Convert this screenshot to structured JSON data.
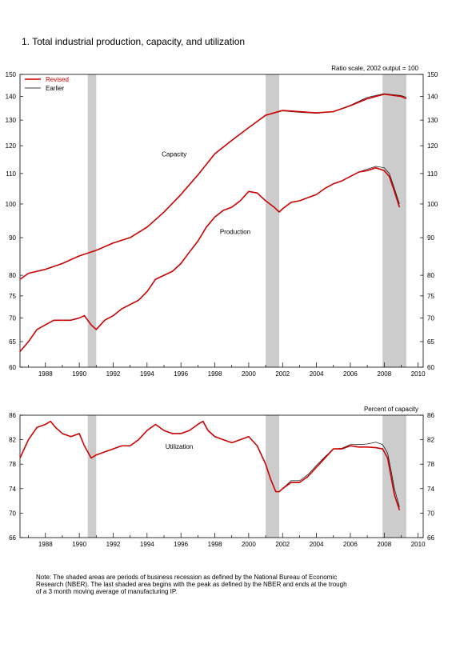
{
  "figure_title": "1. Total industrial production, capacity, and utilization",
  "note_lines": [
    "Note: The shaded areas are periods of business recession as defined by the National Bureau of Economic",
    "Research (NBER).  The last shaded area begins with the peak as defined by the NBER and ends at the trough",
    "of a 3 month moving average of manufacturing IP."
  ],
  "colors": {
    "revised": "#cc0000",
    "earlier": "#000000",
    "recession": "#cccccc"
  },
  "chart_data": [
    {
      "type": "line",
      "title": "",
      "scale": "log",
      "scale_note": "Ratio scale, 2002 output = 100",
      "x_ticks": [
        "1988",
        "1990",
        "1992",
        "1994",
        "1996",
        "1998",
        "2000",
        "2002",
        "2004",
        "2006",
        "2008",
        "2010"
      ],
      "xlim": [
        1986.5,
        2010.3
      ],
      "ylim": [
        60,
        150
      ],
      "y_ticks": [
        60,
        65,
        70,
        75,
        80,
        90,
        100,
        110,
        120,
        130,
        140,
        150
      ],
      "legend": {
        "position": "top-left",
        "entries": [
          "Revised",
          "Earlier"
        ]
      },
      "recessions": [
        [
          1990.5,
          1991.0
        ],
        [
          2001.0,
          2001.8
        ],
        [
          2007.9,
          2009.3
        ]
      ],
      "annotations": [
        {
          "text": "Capacity",
          "x": 1995.6,
          "y": 116
        },
        {
          "text": "Production",
          "x": 1999.2,
          "y": 91
        }
      ],
      "series": [
        {
          "name": "Revised",
          "group": "Capacity",
          "x": [
            1986.5,
            1987,
            1988,
            1989,
            1990,
            1991,
            1992,
            1993,
            1994,
            1995,
            1996,
            1997,
            1998,
            1999,
            2000,
            2001,
            2002,
            2003,
            2004,
            2005,
            2006,
            2007,
            2008,
            2009,
            2009.3
          ],
          "y": [
            79,
            80.5,
            81.5,
            83,
            85,
            86.5,
            88.5,
            90,
            93,
            97.5,
            103,
            109.5,
            117,
            122,
            127,
            132,
            134,
            133.5,
            133,
            133.5,
            136,
            139,
            141,
            140,
            139
          ]
        },
        {
          "name": "Earlier",
          "group": "Capacity",
          "x": [
            1986.5,
            1987,
            1988,
            1989,
            1990,
            1991,
            1992,
            1993,
            1994,
            1995,
            1996,
            1997,
            1998,
            1999,
            2000,
            2001,
            2002,
            2003,
            2004,
            2005,
            2006,
            2007,
            2008,
            2009,
            2009.3
          ],
          "y": [
            79,
            80.5,
            81.5,
            83,
            85,
            86.5,
            88.5,
            90,
            93,
            97.5,
            103,
            109.5,
            117,
            122,
            127,
            132,
            133.8,
            133.2,
            132.8,
            133.5,
            136.2,
            139.6,
            141.2,
            140.4,
            139.6
          ]
        },
        {
          "name": "Revised",
          "group": "Production",
          "x": [
            1986.5,
            1987,
            1987.5,
            1988,
            1988.5,
            1989,
            1989.5,
            1990,
            1990.3,
            1990.7,
            1991,
            1991.5,
            1992,
            1992.5,
            1993,
            1993.5,
            1994,
            1994.5,
            1995,
            1995.5,
            1996,
            1996.5,
            1997,
            1997.5,
            1998,
            1998.5,
            1999,
            1999.5,
            2000,
            2000.5,
            2001,
            2001.5,
            2001.8,
            2002,
            2002.5,
            2003,
            2003.5,
            2004,
            2004.5,
            2005,
            2005.5,
            2006,
            2006.5,
            2007,
            2007.5,
            2008,
            2008.3,
            2008.6,
            2008.9
          ],
          "y": [
            63,
            65,
            67.5,
            68.5,
            69.5,
            69.5,
            69.5,
            70,
            70.5,
            68.5,
            67.5,
            69.5,
            70.5,
            72,
            73,
            74,
            76,
            79,
            80,
            81,
            83,
            86,
            89,
            93,
            96,
            98,
            99,
            101,
            104,
            103.5,
            101,
            99,
            97.5,
            98.5,
            100.5,
            101,
            102,
            103,
            105,
            106.5,
            107.5,
            109,
            110.5,
            111,
            112,
            111,
            109,
            104,
            99
          ]
        },
        {
          "name": "Earlier",
          "group": "Production",
          "x": [
            1986.5,
            1987,
            1987.5,
            1988,
            1988.5,
            1989,
            1989.5,
            1990,
            1990.3,
            1990.7,
            1991,
            1991.5,
            1992,
            1992.5,
            1993,
            1993.5,
            1994,
            1994.5,
            1995,
            1995.5,
            1996,
            1996.5,
            1997,
            1997.5,
            1998,
            1998.5,
            1999,
            1999.5,
            2000,
            2000.5,
            2001,
            2001.5,
            2001.8,
            2002,
            2002.5,
            2003,
            2003.5,
            2004,
            2004.5,
            2005,
            2005.5,
            2006,
            2006.5,
            2007,
            2007.5,
            2008,
            2008.3,
            2008.6,
            2008.9
          ],
          "y": [
            63,
            65,
            67.5,
            68.5,
            69.5,
            69.5,
            69.5,
            70,
            70.5,
            68.5,
            67.5,
            69.5,
            70.5,
            72,
            73,
            74,
            76,
            79,
            80,
            81,
            83,
            86,
            89,
            93,
            96,
            98,
            99,
            101,
            104,
            103.5,
            101,
            99,
            97.5,
            98.5,
            100.5,
            101,
            102,
            103,
            105,
            106.5,
            107.5,
            109,
            110.5,
            111.5,
            112.5,
            112,
            110,
            105,
            100
          ]
        }
      ]
    },
    {
      "type": "line",
      "title": "",
      "unit_note": "Percent of capacity",
      "x_ticks": [
        "1988",
        "1990",
        "1992",
        "1994",
        "1996",
        "1998",
        "2000",
        "2002",
        "2004",
        "2006",
        "2008",
        "2010"
      ],
      "xlim": [
        1986.5,
        2010.3
      ],
      "ylim": [
        66,
        86
      ],
      "y_ticks": [
        66,
        70,
        74,
        78,
        82,
        86
      ],
      "recessions": [
        [
          1990.5,
          1991.0
        ],
        [
          2001.0,
          2001.8
        ],
        [
          2007.9,
          2009.3
        ]
      ],
      "annotations": [
        {
          "text": "Utilization",
          "x": 1995.9,
          "y": 80.5
        }
      ],
      "series": [
        {
          "name": "Revised",
          "x": [
            1986.5,
            1987,
            1987.5,
            1988,
            1988.3,
            1988.6,
            1989,
            1989.5,
            1990,
            1990.3,
            1990.7,
            1991,
            1991.5,
            1992,
            1992.5,
            1993,
            1993.5,
            1994,
            1994.5,
            1995,
            1995.5,
            1996,
            1996.5,
            1997,
            1997.3,
            1997.6,
            1998,
            1998.5,
            1999,
            1999.5,
            2000,
            2000.5,
            2001,
            2001.3,
            2001.6,
            2001.8,
            2002,
            2002.5,
            2003,
            2003.5,
            2004,
            2004.5,
            2005,
            2005.5,
            2006,
            2006.5,
            2007,
            2007.5,
            2007.9,
            2008.2,
            2008.4,
            2008.6,
            2008.9
          ],
          "y": [
            79,
            82,
            84,
            84.5,
            85,
            84,
            83,
            82.5,
            83,
            81,
            79,
            79.5,
            80,
            80.5,
            81,
            81,
            82,
            83.5,
            84.5,
            83.5,
            83,
            83,
            83.5,
            84.5,
            85,
            83.5,
            82.5,
            82,
            81.5,
            82,
            82.5,
            81,
            78,
            75.5,
            73.5,
            73.5,
            74,
            75,
            75,
            76,
            77.5,
            79,
            80.5,
            80.5,
            81,
            80.8,
            80.8,
            80.7,
            80.5,
            79,
            76,
            73,
            70.5
          ]
        },
        {
          "name": "Earlier",
          "x": [
            1986.5,
            1987,
            1987.5,
            1988,
            1988.3,
            1988.6,
            1989,
            1989.5,
            1990,
            1990.3,
            1990.7,
            1991,
            1991.5,
            1992,
            1992.5,
            1993,
            1993.5,
            1994,
            1994.5,
            1995,
            1995.5,
            1996,
            1996.5,
            1997,
            1997.3,
            1997.6,
            1998,
            1998.5,
            1999,
            1999.5,
            2000,
            2000.5,
            2001,
            2001.3,
            2001.6,
            2001.8,
            2002,
            2002.5,
            2003,
            2003.5,
            2004,
            2004.5,
            2005,
            2005.5,
            2006,
            2006.5,
            2007,
            2007.5,
            2007.9,
            2008.2,
            2008.4,
            2008.6,
            2008.9
          ],
          "y": [
            79,
            82,
            84,
            84.5,
            85,
            84,
            83,
            82.5,
            83,
            81,
            79,
            79.5,
            80,
            80.5,
            81,
            81,
            82,
            83.5,
            84.5,
            83.5,
            83,
            83,
            83.5,
            84.5,
            85,
            83.5,
            82.5,
            82,
            81.5,
            82,
            82.5,
            81,
            78,
            75.5,
            73.5,
            73.5,
            74,
            75.3,
            75.3,
            76.3,
            77.8,
            79.2,
            80.5,
            80.6,
            81.2,
            81.2,
            81.3,
            81.6,
            81.2,
            79.8,
            77,
            74,
            71
          ]
        }
      ]
    }
  ]
}
